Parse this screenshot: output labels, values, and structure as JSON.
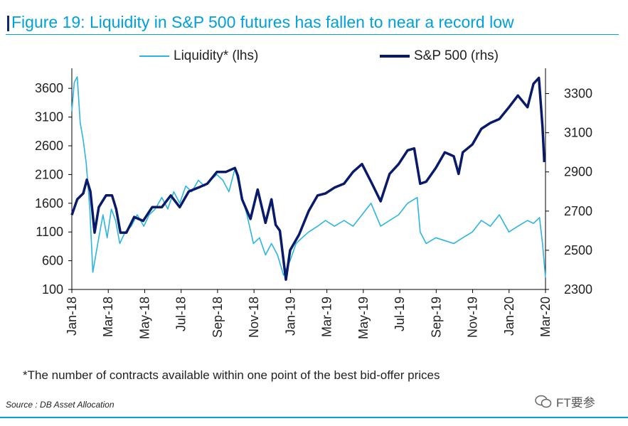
{
  "chart_data": {
    "type": "line",
    "title": "Figure 19: Liquidity in S&P 500 futures has fallen to near a record low",
    "x_tick_labels": [
      "Jan-18",
      "Mar-18",
      "May-18",
      "Jul-18",
      "Sep-18",
      "Nov-18",
      "Jan-19",
      "Mar-19",
      "May-19",
      "Jul-19",
      "Sep-19",
      "Nov-19",
      "Jan-20",
      "Mar-20"
    ],
    "x_range": [
      "2018-01-01",
      "2020-03-01"
    ],
    "y_left": {
      "ylim": [
        100,
        3850
      ],
      "ticks": [
        100,
        600,
        1100,
        1600,
        2100,
        2600,
        3100,
        3600
      ]
    },
    "y_right": {
      "ylim": [
        2300,
        3400
      ],
      "ticks": [
        2300,
        2500,
        2700,
        2900,
        3100,
        3300
      ]
    },
    "series": [
      {
        "name": "Liquidity* (lhs)",
        "axis": "left",
        "color": "#2bb5e0",
        "points": [
          [
            "2018-01-01",
            3200
          ],
          [
            "2018-01-05",
            3700
          ],
          [
            "2018-01-10",
            3800
          ],
          [
            "2018-01-15",
            3000
          ],
          [
            "2018-01-20",
            2700
          ],
          [
            "2018-01-25",
            2300
          ],
          [
            "2018-01-31",
            1500
          ],
          [
            "2018-02-05",
            400
          ],
          [
            "2018-02-10",
            700
          ],
          [
            "2018-02-15",
            1000
          ],
          [
            "2018-02-22",
            1400
          ],
          [
            "2018-03-01",
            1000
          ],
          [
            "2018-03-08",
            1500
          ],
          [
            "2018-03-15",
            1300
          ],
          [
            "2018-03-22",
            900
          ],
          [
            "2018-03-31",
            1100
          ],
          [
            "2018-04-10",
            1200
          ],
          [
            "2018-04-20",
            1400
          ],
          [
            "2018-05-01",
            1200
          ],
          [
            "2018-05-10",
            1400
          ],
          [
            "2018-05-20",
            1500
          ],
          [
            "2018-05-31",
            1700
          ],
          [
            "2018-06-10",
            1500
          ],
          [
            "2018-06-20",
            1800
          ],
          [
            "2018-06-30",
            1600
          ],
          [
            "2018-07-10",
            1900
          ],
          [
            "2018-07-20",
            1800
          ],
          [
            "2018-07-31",
            2000
          ],
          [
            "2018-08-10",
            1900
          ],
          [
            "2018-08-20",
            2000
          ],
          [
            "2018-08-31",
            2100
          ],
          [
            "2018-09-10",
            2000
          ],
          [
            "2018-09-20",
            1800
          ],
          [
            "2018-09-30",
            2200
          ],
          [
            "2018-10-10",
            1800
          ],
          [
            "2018-10-20",
            1400
          ],
          [
            "2018-10-31",
            900
          ],
          [
            "2018-11-10",
            1000
          ],
          [
            "2018-11-20",
            700
          ],
          [
            "2018-11-30",
            900
          ],
          [
            "2018-12-10",
            700
          ],
          [
            "2018-12-20",
            350
          ],
          [
            "2018-12-31",
            600
          ],
          [
            "2019-01-10",
            900
          ],
          [
            "2019-01-20",
            1000
          ],
          [
            "2019-01-31",
            1100
          ],
          [
            "2019-02-15",
            1200
          ],
          [
            "2019-02-28",
            1300
          ],
          [
            "2019-03-15",
            1200
          ],
          [
            "2019-03-31",
            1300
          ],
          [
            "2019-04-15",
            1200
          ],
          [
            "2019-04-30",
            1400
          ],
          [
            "2019-05-15",
            1600
          ],
          [
            "2019-05-31",
            1200
          ],
          [
            "2019-06-15",
            1300
          ],
          [
            "2019-06-30",
            1400
          ],
          [
            "2019-07-15",
            1600
          ],
          [
            "2019-07-31",
            1700
          ],
          [
            "2019-08-05",
            1100
          ],
          [
            "2019-08-15",
            900
          ],
          [
            "2019-08-31",
            1000
          ],
          [
            "2019-09-15",
            950
          ],
          [
            "2019-09-30",
            900
          ],
          [
            "2019-10-15",
            1000
          ],
          [
            "2019-10-31",
            1100
          ],
          [
            "2019-11-15",
            1300
          ],
          [
            "2019-11-30",
            1200
          ],
          [
            "2019-12-15",
            1400
          ],
          [
            "2019-12-31",
            1100
          ],
          [
            "2020-01-15",
            1200
          ],
          [
            "2020-01-31",
            1300
          ],
          [
            "2020-02-10",
            1250
          ],
          [
            "2020-02-20",
            1350
          ],
          [
            "2020-02-25",
            900
          ],
          [
            "2020-03-01",
            300
          ]
        ]
      },
      {
        "name": "S&P 500 (rhs)",
        "axis": "right",
        "color": "#0a1a6b",
        "points": [
          [
            "2018-01-01",
            2680
          ],
          [
            "2018-01-10",
            2760
          ],
          [
            "2018-01-20",
            2790
          ],
          [
            "2018-01-26",
            2860
          ],
          [
            "2018-02-01",
            2800
          ],
          [
            "2018-02-08",
            2590
          ],
          [
            "2018-02-15",
            2720
          ],
          [
            "2018-02-27",
            2780
          ],
          [
            "2018-03-09",
            2780
          ],
          [
            "2018-03-16",
            2710
          ],
          [
            "2018-03-23",
            2590
          ],
          [
            "2018-04-02",
            2590
          ],
          [
            "2018-04-15",
            2670
          ],
          [
            "2018-04-30",
            2650
          ],
          [
            "2018-05-15",
            2720
          ],
          [
            "2018-05-31",
            2720
          ],
          [
            "2018-06-15",
            2780
          ],
          [
            "2018-06-30",
            2720
          ],
          [
            "2018-07-15",
            2800
          ],
          [
            "2018-07-31",
            2820
          ],
          [
            "2018-08-15",
            2840
          ],
          [
            "2018-08-31",
            2900
          ],
          [
            "2018-09-15",
            2900
          ],
          [
            "2018-09-30",
            2920
          ],
          [
            "2018-10-05",
            2880
          ],
          [
            "2018-10-12",
            2760
          ],
          [
            "2018-10-26",
            2660
          ],
          [
            "2018-11-07",
            2810
          ],
          [
            "2018-11-20",
            2640
          ],
          [
            "2018-11-30",
            2760
          ],
          [
            "2018-12-07",
            2630
          ],
          [
            "2018-12-14",
            2600
          ],
          [
            "2018-12-24",
            2350
          ],
          [
            "2018-12-31",
            2500
          ],
          [
            "2019-01-15",
            2580
          ],
          [
            "2019-01-31",
            2700
          ],
          [
            "2019-02-15",
            2780
          ],
          [
            "2019-02-28",
            2790
          ],
          [
            "2019-03-15",
            2820
          ],
          [
            "2019-03-31",
            2840
          ],
          [
            "2019-04-15",
            2900
          ],
          [
            "2019-04-30",
            2940
          ],
          [
            "2019-05-15",
            2850
          ],
          [
            "2019-05-31",
            2750
          ],
          [
            "2019-06-15",
            2890
          ],
          [
            "2019-06-30",
            2940
          ],
          [
            "2019-07-15",
            3010
          ],
          [
            "2019-07-26",
            3020
          ],
          [
            "2019-08-05",
            2840
          ],
          [
            "2019-08-15",
            2850
          ],
          [
            "2019-08-31",
            2920
          ],
          [
            "2019-09-15",
            3000
          ],
          [
            "2019-09-30",
            2980
          ],
          [
            "2019-10-08",
            2890
          ],
          [
            "2019-10-15",
            3000
          ],
          [
            "2019-10-31",
            3040
          ],
          [
            "2019-11-15",
            3120
          ],
          [
            "2019-11-30",
            3150
          ],
          [
            "2019-12-15",
            3170
          ],
          [
            "2019-12-31",
            3230
          ],
          [
            "2020-01-15",
            3290
          ],
          [
            "2020-01-31",
            3230
          ],
          [
            "2020-02-10",
            3350
          ],
          [
            "2020-02-19",
            3380
          ],
          [
            "2020-02-25",
            3130
          ],
          [
            "2020-02-28",
            2950
          ]
        ]
      }
    ],
    "legend_placement": "top",
    "grid": false
  },
  "footnote": "*The number of contracts available within one point of the best bid-offer prices",
  "source": "Source : DB Asset Allocation",
  "watermark": "FT要参"
}
